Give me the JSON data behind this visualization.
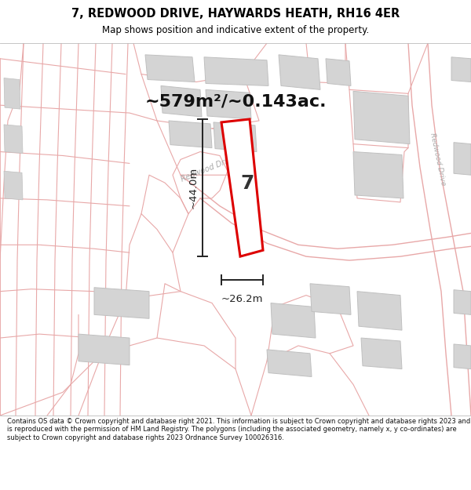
{
  "title_line1": "7, REDWOOD DRIVE, HAYWARDS HEATH, RH16 4ER",
  "title_line2": "Map shows position and indicative extent of the property.",
  "area_text": "~579m²/~0.143ac.",
  "property_number": "7",
  "dim_height": "~44.0m",
  "dim_width": "~26.2m",
  "footer_text": "Contains OS data © Crown copyright and database right 2021. This information is subject to Crown copyright and database rights 2023 and is reproduced with the permission of HM Land Registry. The polygons (including the associated geometry, namely x, y co-ordinates) are subject to Crown copyright and database rights 2023 Ordnance Survey 100026316.",
  "bg_color": "#f8f8f8",
  "road_outline_color": "#e8a8a8",
  "building_fill": "#d4d4d4",
  "building_edge": "#c0c0c0",
  "property_fill": "#ffffff",
  "property_edge": "#dd0000",
  "road_label_color": "#aaaaaa",
  "dim_color": "#222222",
  "title_color": "#000000"
}
